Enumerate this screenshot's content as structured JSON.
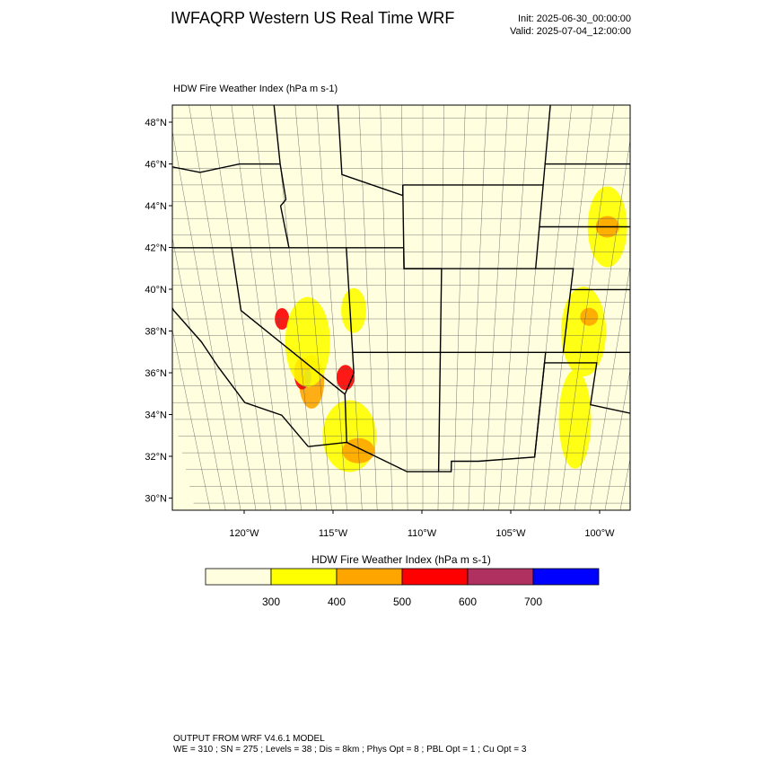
{
  "header": {
    "title": "IWFAQRP Western US Real Time WRF",
    "init": "Init: 2025-06-30_00:00:00",
    "valid": "Valid: 2025-07-04_12:00:00"
  },
  "map": {
    "subtitle": "HDW Fire Weather Index   (hPa m s-1)",
    "lat_labels": [
      "48°N",
      "46°N",
      "44°N",
      "42°N",
      "40°N",
      "38°N",
      "36°N",
      "34°N",
      "32°N",
      "30°N"
    ],
    "lon_labels": [
      "120°W",
      "115°W",
      "110°W",
      "105°W",
      "100°W"
    ]
  },
  "colorbar": {
    "title": "HDW Fire Weather Index (hPa m s-1)",
    "levels": [
      300,
      400,
      500,
      600,
      700
    ],
    "colors": [
      "#ffffe0",
      "#ffff00",
      "#ffa500",
      "#ff0000",
      "#b03060",
      "#0000ff"
    ]
  },
  "footer": {
    "line1": "OUTPUT FROM WRF V4.6.1 MODEL",
    "line2": "WE = 310 ; SN = 275 ; Levels = 38 ; Dis = 8km ; Phys Opt = 8 ; PBL Opt = 1 ; Cu Opt = 3"
  }
}
